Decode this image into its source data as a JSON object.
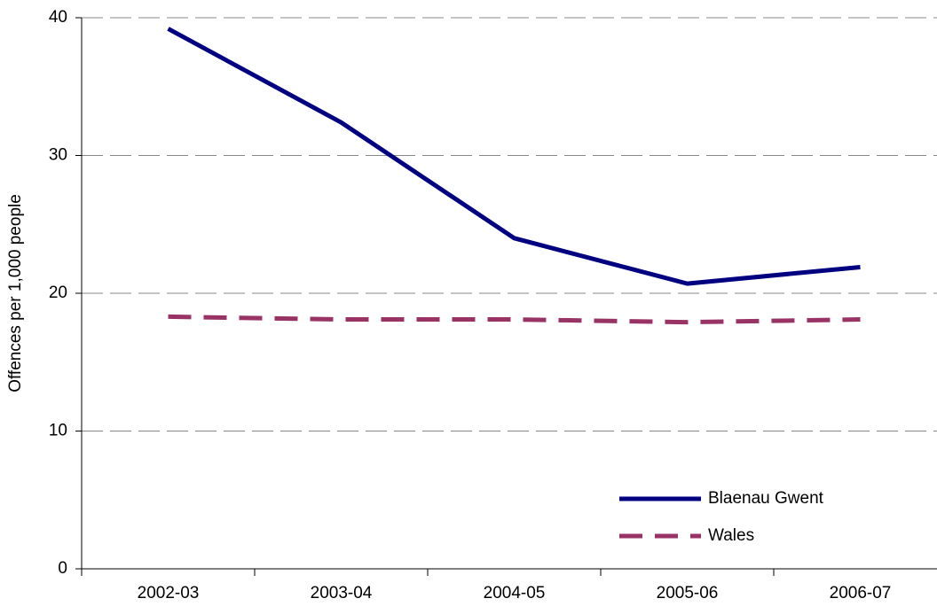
{
  "chart_data": {
    "type": "line",
    "y_label": "Offences per 1,000 people",
    "categories": [
      "2002-03",
      "2003-04",
      "2004-05",
      "2005-06",
      "2006-07"
    ],
    "series": [
      {
        "name": "Blaenau Gwent",
        "color": "#000080",
        "dash": "solid",
        "values": [
          39.2,
          32.4,
          24.0,
          20.7,
          21.9
        ]
      },
      {
        "name": "Wales",
        "color": "#993366",
        "dash": "dashed",
        "values": [
          18.3,
          18.1,
          18.1,
          17.9,
          18.1
        ]
      }
    ],
    "ylim": [
      0,
      40
    ],
    "yticks": [
      0,
      10,
      20,
      30,
      40
    ],
    "grid": true,
    "legend": "lower right"
  }
}
